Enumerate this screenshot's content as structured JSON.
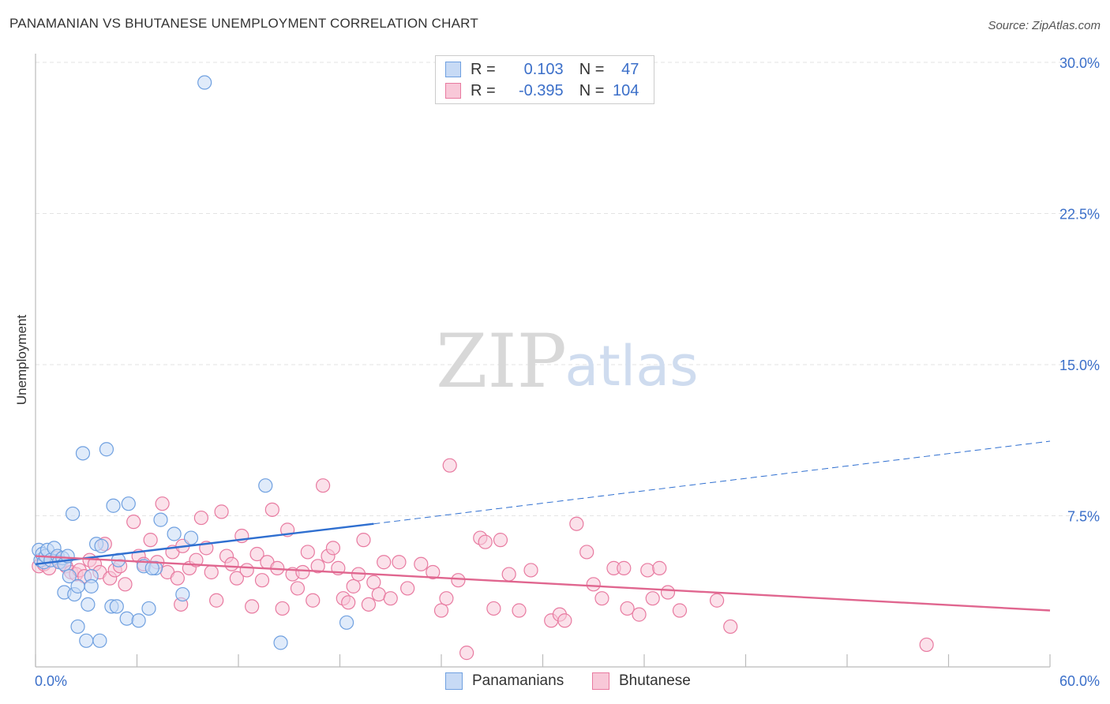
{
  "title": "PANAMANIAN VS BHUTANESE UNEMPLOYMENT CORRELATION CHART",
  "source": "Source: ZipAtlas.com",
  "watermark": {
    "zip": "ZIP",
    "atlas": "atlas"
  },
  "legend": {
    "rows": [
      {
        "name": "Panamanians",
        "r_label": "R =",
        "r_value": "0.103",
        "n_label": "N =",
        "n_value": "47",
        "color": "#6fa0e0",
        "fill": "#c7daf5"
      },
      {
        "name": "Bhutanese",
        "r_label": "R =",
        "r_value": "-0.395",
        "n_label": "N =",
        "n_value": "104",
        "color": "#e87aa0",
        "fill": "#f8c8d8"
      }
    ]
  },
  "chart_data": {
    "type": "scatter",
    "title": "PANAMANIAN VS BHUTANESE UNEMPLOYMENT CORRELATION CHART",
    "xlabel": "",
    "ylabel": "Unemployment",
    "xlim": [
      0,
      60
    ],
    "ylim": [
      0,
      30
    ],
    "x_tick_labels": [
      "0.0%",
      "60.0%"
    ],
    "y_ticks": [
      7.5,
      15.0,
      22.5,
      30.0
    ],
    "y_tick_labels": [
      "7.5%",
      "15.0%",
      "22.5%",
      "30.0%"
    ],
    "series": [
      {
        "name": "Panamanians",
        "color": "#6fa0e0",
        "fill": "#c7daf5",
        "points": [
          [
            0.2,
            5.8
          ],
          [
            0.3,
            5.3
          ],
          [
            0.4,
            5.6
          ],
          [
            0.5,
            5.2
          ],
          [
            0.6,
            5.5
          ],
          [
            0.7,
            5.8
          ],
          [
            0.9,
            5.3
          ],
          [
            1.1,
            5.9
          ],
          [
            1.3,
            5.5
          ],
          [
            1.4,
            5.2
          ],
          [
            1.6,
            5.4
          ],
          [
            1.7,
            5.1
          ],
          [
            1.9,
            5.5
          ],
          [
            1.7,
            3.7
          ],
          [
            2.0,
            4.5
          ],
          [
            2.2,
            7.6
          ],
          [
            2.3,
            3.6
          ],
          [
            2.5,
            4.0
          ],
          [
            2.5,
            2.0
          ],
          [
            2.8,
            10.6
          ],
          [
            3.0,
            1.3
          ],
          [
            3.3,
            4.5
          ],
          [
            3.3,
            4.0
          ],
          [
            3.1,
            3.1
          ],
          [
            3.6,
            6.1
          ],
          [
            3.8,
            1.3
          ],
          [
            3.9,
            6.0
          ],
          [
            4.2,
            10.8
          ],
          [
            4.5,
            3.0
          ],
          [
            4.6,
            8.0
          ],
          [
            4.8,
            3.0
          ],
          [
            4.9,
            5.3
          ],
          [
            5.4,
            2.4
          ],
          [
            5.5,
            8.1
          ],
          [
            6.1,
            2.3
          ],
          [
            6.7,
            2.9
          ],
          [
            6.4,
            5.0
          ],
          [
            7.1,
            4.9
          ],
          [
            7.4,
            7.3
          ],
          [
            8.2,
            6.6
          ],
          [
            8.7,
            3.6
          ],
          [
            9.2,
            6.4
          ],
          [
            10.0,
            29.0
          ],
          [
            13.6,
            9.0
          ],
          [
            14.5,
            1.2
          ],
          [
            18.4,
            2.2
          ],
          [
            6.9,
            4.9
          ]
        ],
        "trend": {
          "x0": 0,
          "y0": 5.1,
          "x1": 20,
          "y1": 7.1,
          "dashed_to": [
            60,
            11.2
          ]
        }
      },
      {
        "name": "Bhutanese",
        "color": "#e87aa0",
        "fill": "#f8c8d8",
        "points": [
          [
            0.2,
            5.0
          ],
          [
            0.5,
            5.1
          ],
          [
            0.8,
            4.9
          ],
          [
            1.2,
            5.4
          ],
          [
            1.5,
            5.2
          ],
          [
            1.8,
            5.0
          ],
          [
            2.1,
            4.7
          ],
          [
            2.4,
            4.6
          ],
          [
            2.6,
            4.8
          ],
          [
            2.9,
            4.5
          ],
          [
            3.2,
            5.3
          ],
          [
            3.5,
            5.1
          ],
          [
            3.8,
            4.7
          ],
          [
            4.1,
            6.1
          ],
          [
            4.4,
            4.4
          ],
          [
            4.7,
            4.8
          ],
          [
            5.0,
            5.0
          ],
          [
            5.3,
            4.1
          ],
          [
            5.8,
            7.2
          ],
          [
            6.1,
            5.5
          ],
          [
            6.4,
            5.1
          ],
          [
            6.8,
            6.3
          ],
          [
            7.2,
            5.2
          ],
          [
            7.5,
            8.1
          ],
          [
            7.8,
            4.7
          ],
          [
            8.1,
            5.7
          ],
          [
            8.4,
            4.4
          ],
          [
            8.7,
            6.0
          ],
          [
            8.6,
            3.1
          ],
          [
            9.1,
            4.9
          ],
          [
            9.5,
            5.3
          ],
          [
            9.8,
            7.4
          ],
          [
            10.1,
            5.9
          ],
          [
            10.4,
            4.7
          ],
          [
            10.7,
            3.3
          ],
          [
            11.0,
            7.7
          ],
          [
            11.3,
            5.5
          ],
          [
            11.6,
            5.1
          ],
          [
            11.9,
            4.4
          ],
          [
            12.2,
            6.5
          ],
          [
            12.5,
            4.8
          ],
          [
            12.8,
            3.0
          ],
          [
            13.1,
            5.6
          ],
          [
            13.4,
            4.3
          ],
          [
            13.7,
            5.2
          ],
          [
            14.0,
            7.8
          ],
          [
            14.3,
            4.9
          ],
          [
            14.6,
            2.9
          ],
          [
            14.9,
            6.8
          ],
          [
            15.2,
            4.6
          ],
          [
            15.5,
            3.9
          ],
          [
            15.8,
            4.7
          ],
          [
            16.1,
            5.7
          ],
          [
            16.4,
            3.3
          ],
          [
            16.7,
            5.0
          ],
          [
            17.0,
            9.0
          ],
          [
            17.3,
            5.5
          ],
          [
            17.6,
            5.9
          ],
          [
            17.9,
            4.9
          ],
          [
            18.2,
            3.4
          ],
          [
            18.5,
            3.2
          ],
          [
            18.8,
            4.0
          ],
          [
            19.1,
            4.6
          ],
          [
            19.4,
            6.3
          ],
          [
            19.7,
            3.1
          ],
          [
            20.0,
            4.2
          ],
          [
            20.3,
            3.6
          ],
          [
            20.6,
            5.2
          ],
          [
            21.0,
            3.4
          ],
          [
            21.5,
            5.2
          ],
          [
            22.0,
            3.9
          ],
          [
            22.8,
            5.1
          ],
          [
            23.5,
            4.7
          ],
          [
            24.0,
            2.8
          ],
          [
            24.3,
            3.4
          ],
          [
            24.5,
            10.0
          ],
          [
            25.0,
            4.3
          ],
          [
            25.5,
            0.7
          ],
          [
            26.3,
            6.4
          ],
          [
            26.6,
            6.2
          ],
          [
            27.1,
            2.9
          ],
          [
            27.5,
            6.3
          ],
          [
            28.0,
            4.6
          ],
          [
            28.6,
            2.8
          ],
          [
            29.3,
            4.8
          ],
          [
            30.5,
            2.3
          ],
          [
            31.0,
            2.6
          ],
          [
            31.3,
            2.3
          ],
          [
            32.0,
            7.1
          ],
          [
            32.6,
            5.7
          ],
          [
            33.0,
            4.1
          ],
          [
            33.5,
            3.4
          ],
          [
            34.2,
            4.9
          ],
          [
            34.8,
            4.9
          ],
          [
            35.0,
            2.9
          ],
          [
            35.7,
            2.6
          ],
          [
            36.2,
            4.8
          ],
          [
            36.5,
            3.4
          ],
          [
            36.9,
            4.9
          ],
          [
            37.4,
            3.7
          ],
          [
            38.1,
            2.8
          ],
          [
            40.3,
            3.3
          ],
          [
            41.1,
            2.0
          ],
          [
            52.7,
            1.1
          ]
        ],
        "trend": {
          "x0": 0,
          "y0": 5.5,
          "x1": 60,
          "y1": 2.8
        }
      }
    ]
  }
}
